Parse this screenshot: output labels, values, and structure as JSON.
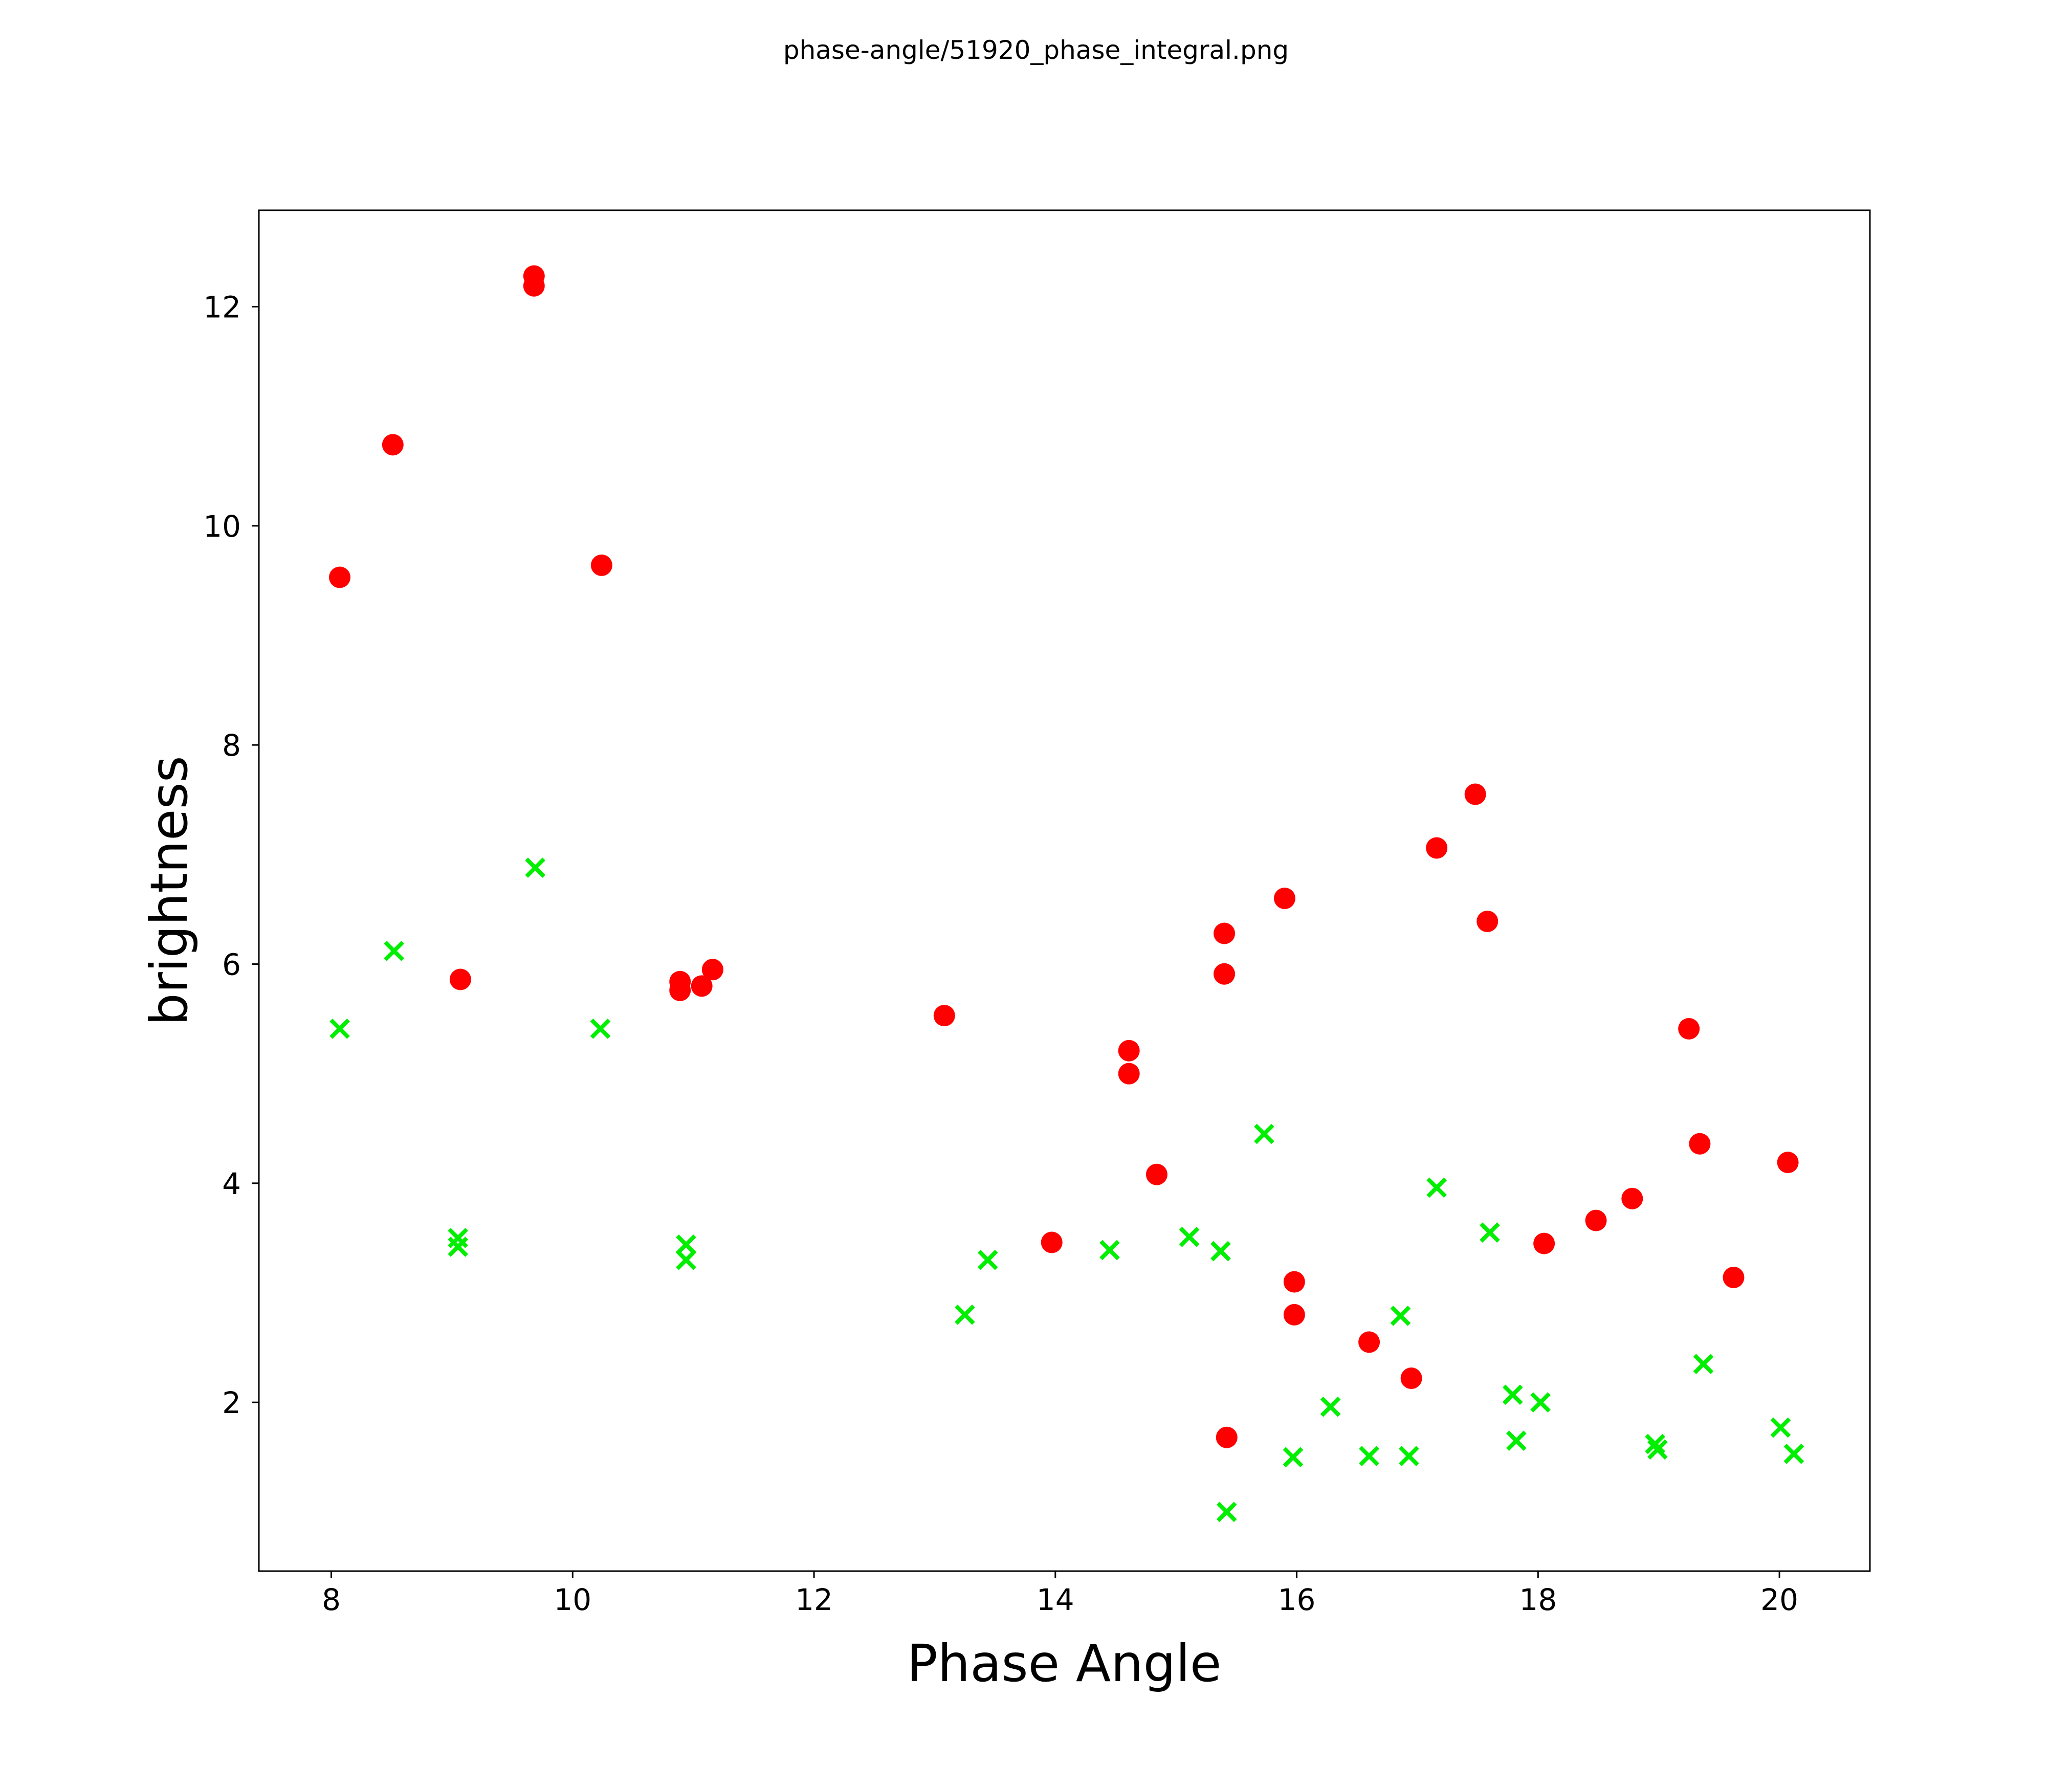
{
  "page": {
    "background_color": "#ffffff",
    "axis_color": "#000000"
  },
  "chart_data": {
    "type": "scatter",
    "title": "phase-angle/51920_phase_integral.png",
    "xlabel": "Phase Angle",
    "ylabel": "brightness",
    "xlim": [
      7.4,
      20.75
    ],
    "ylim": [
      0.46,
      12.88
    ],
    "xticks": [
      8,
      10,
      12,
      14,
      16,
      18,
      20
    ],
    "yticks": [
      2,
      4,
      6,
      8,
      10,
      12
    ],
    "grid": false,
    "legend_position": "none",
    "series": [
      {
        "name": "red-circles",
        "marker": "circle",
        "color": "#ff0000",
        "points": [
          [
            8.07,
            9.53
          ],
          [
            8.51,
            10.74
          ],
          [
            9.07,
            5.86
          ],
          [
            9.68,
            12.28
          ],
          [
            9.68,
            12.19
          ],
          [
            10.24,
            9.64
          ],
          [
            10.89,
            5.84
          ],
          [
            10.89,
            5.76
          ],
          [
            11.07,
            5.8
          ],
          [
            11.16,
            5.95
          ],
          [
            13.08,
            5.53
          ],
          [
            13.97,
            3.46
          ],
          [
            14.61,
            5.21
          ],
          [
            14.61,
            5.0
          ],
          [
            14.84,
            4.08
          ],
          [
            15.4,
            6.28
          ],
          [
            15.4,
            5.91
          ],
          [
            15.42,
            1.68
          ],
          [
            15.9,
            6.6
          ],
          [
            15.98,
            3.1
          ],
          [
            15.98,
            2.8
          ],
          [
            16.6,
            2.55
          ],
          [
            16.95,
            2.22
          ],
          [
            17.16,
            7.06
          ],
          [
            17.48,
            7.55
          ],
          [
            17.58,
            6.39
          ],
          [
            18.05,
            3.45
          ],
          [
            18.48,
            3.66
          ],
          [
            18.78,
            3.86
          ],
          [
            19.25,
            5.41
          ],
          [
            19.34,
            4.36
          ],
          [
            19.62,
            3.14
          ],
          [
            20.07,
            4.19
          ]
        ]
      },
      {
        "name": "green-crosses",
        "marker": "x",
        "color": "#00ee00",
        "points": [
          [
            8.07,
            5.41
          ],
          [
            8.52,
            6.12
          ],
          [
            9.05,
            3.5
          ],
          [
            9.05,
            3.42
          ],
          [
            9.69,
            6.88
          ],
          [
            10.23,
            5.41
          ],
          [
            10.94,
            3.44
          ],
          [
            10.94,
            3.3
          ],
          [
            13.25,
            2.8
          ],
          [
            13.44,
            3.3
          ],
          [
            14.45,
            3.39
          ],
          [
            15.11,
            3.51
          ],
          [
            15.37,
            3.38
          ],
          [
            15.42,
            1.0
          ],
          [
            15.73,
            4.45
          ],
          [
            15.97,
            1.5
          ],
          [
            16.28,
            1.96
          ],
          [
            16.6,
            1.51
          ],
          [
            16.86,
            2.79
          ],
          [
            16.93,
            1.51
          ],
          [
            17.16,
            3.96
          ],
          [
            17.6,
            3.55
          ],
          [
            17.79,
            2.07
          ],
          [
            17.82,
            1.65
          ],
          [
            18.02,
            2.0
          ],
          [
            18.97,
            1.62
          ],
          [
            18.99,
            1.57
          ],
          [
            19.37,
            2.35
          ],
          [
            20.01,
            1.77
          ],
          [
            20.12,
            1.53
          ]
        ]
      }
    ]
  }
}
